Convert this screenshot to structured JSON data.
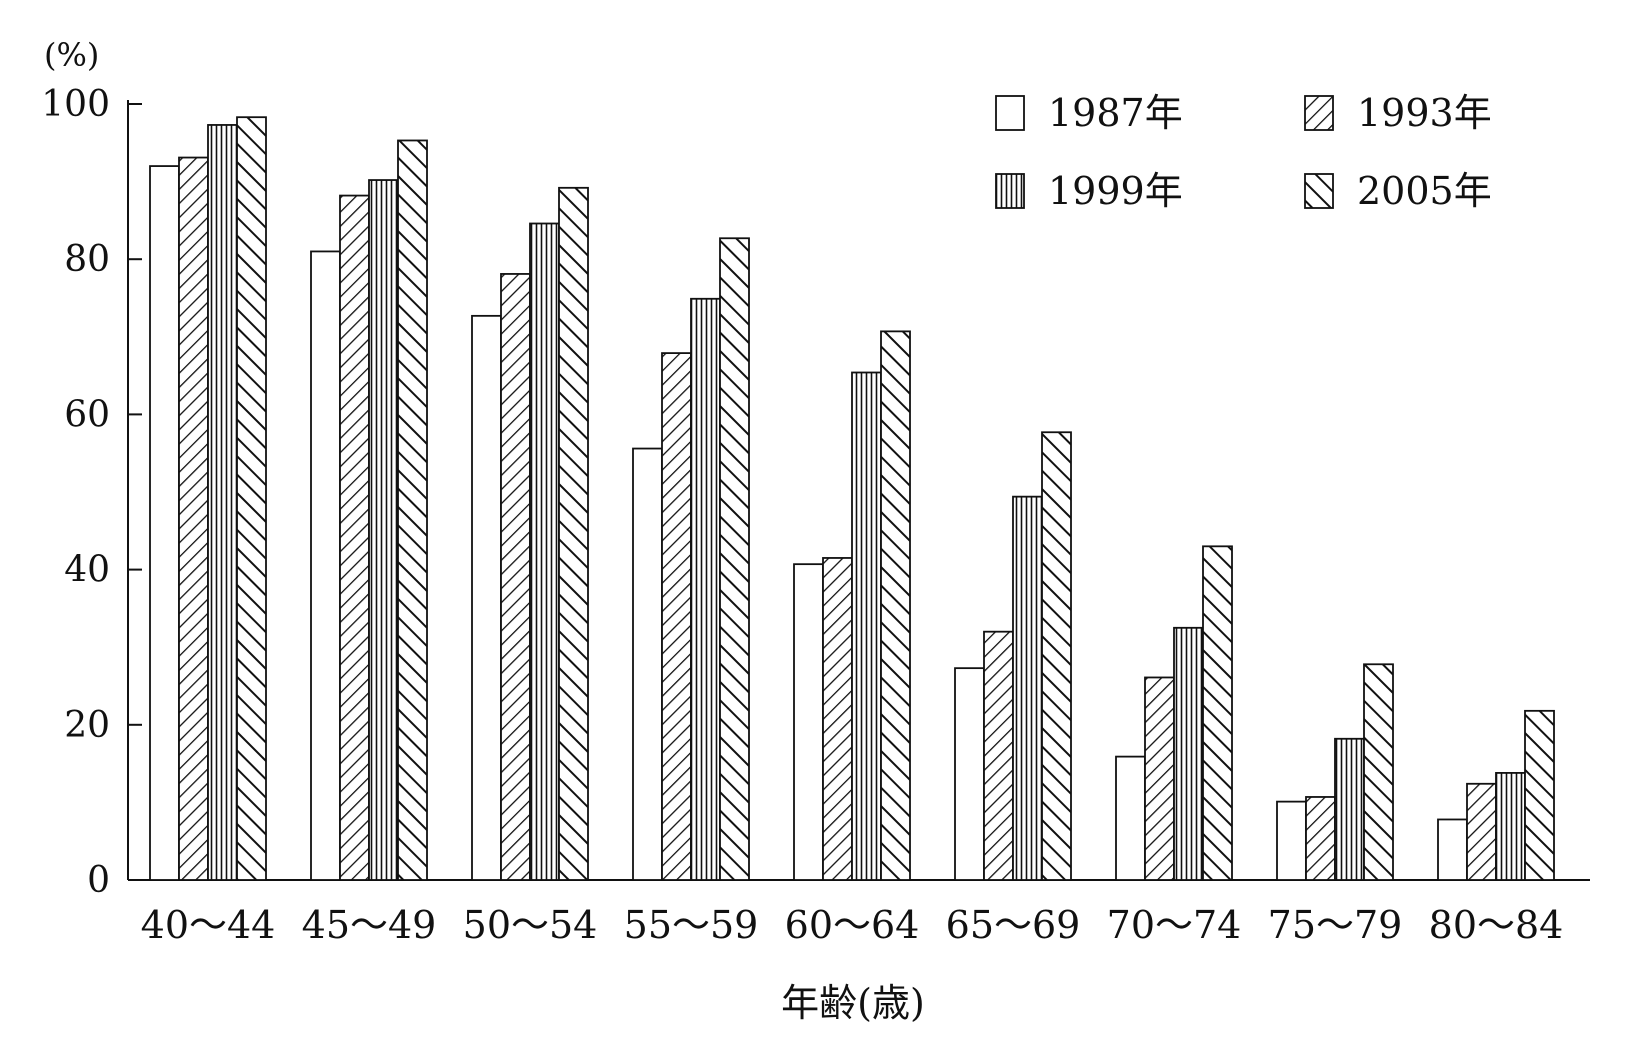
{
  "chart_data": {
    "type": "bar",
    "unit_label": "(%)",
    "xlabel": "年齢(歳)",
    "ylabel": "",
    "ylim": [
      0,
      100
    ],
    "yticks": [
      0,
      20,
      40,
      60,
      80,
      100
    ],
    "grid": false,
    "legend_position": "top-right",
    "categories": [
      "40～44",
      "45～49",
      "50～54",
      "55～59",
      "60～64",
      "65～69",
      "70～74",
      "75～79",
      "80～84"
    ],
    "series": [
      {
        "name": "1987年",
        "pattern": "blank",
        "values": [
          92.0,
          81.0,
          72.7,
          55.6,
          40.7,
          27.3,
          15.9,
          10.1,
          7.8
        ]
      },
      {
        "name": "1993年",
        "pattern": "backslash-hatch",
        "values": [
          93.1,
          88.2,
          78.1,
          67.9,
          41.5,
          32.0,
          26.1,
          10.7,
          12.4
        ]
      },
      {
        "name": "1999年",
        "pattern": "vertical-lines",
        "values": [
          97.3,
          90.2,
          84.6,
          74.9,
          65.4,
          49.4,
          32.5,
          18.2,
          13.8
        ]
      },
      {
        "name": "2005年",
        "pattern": "slash-hatch",
        "values": [
          98.3,
          95.3,
          89.2,
          82.7,
          70.7,
          57.7,
          43.0,
          27.8,
          21.8
        ]
      }
    ],
    "colors": {
      "stroke": "#111111",
      "fill": "#ffffff",
      "pattern": "#111111"
    }
  }
}
